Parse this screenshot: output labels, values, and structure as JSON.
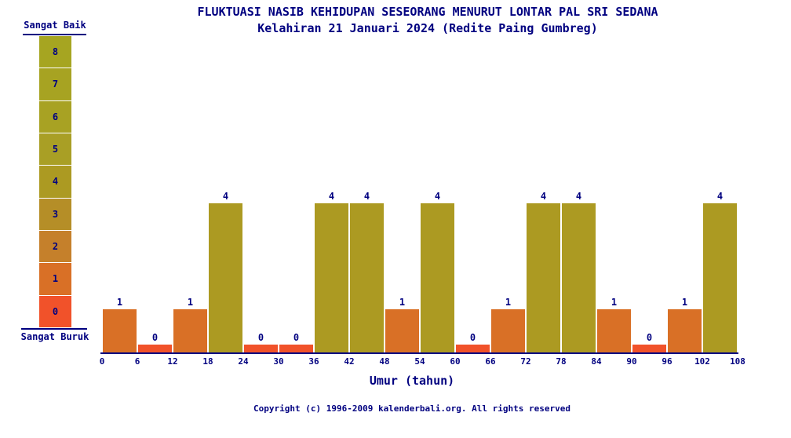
{
  "title": {
    "line1": "FLUKTUASI NASIB KEHIDUPAN SESEORANG MENURUT LONTAR PAL SRI SEDANA",
    "line2": "Kelahiran 21 Januari 2024 (Redite Paing Gumbreg)"
  },
  "legend": {
    "top_label": "Sangat Baik",
    "bottom_label": "Sangat Buruk",
    "scale": [
      {
        "value": 8,
        "color": "#a6a521"
      },
      {
        "value": 7,
        "color": "#a7a322"
      },
      {
        "value": 6,
        "color": "#a8a223"
      },
      {
        "value": 5,
        "color": "#a99f25"
      },
      {
        "value": 4,
        "color": "#ac9a22"
      },
      {
        "value": 3,
        "color": "#b58e27"
      },
      {
        "value": 2,
        "color": "#c5802b"
      },
      {
        "value": 1,
        "color": "#d97026"
      },
      {
        "value": 0,
        "color": "#f1522a"
      }
    ]
  },
  "chart_data": {
    "type": "bar",
    "title": "FLUKTUASI NASIB KEHIDUPAN SESEORANG MENURUT LONTAR PAL SRI SEDANA",
    "subtitle": "Kelahiran 21 Januari 2024 (Redite Paing Gumbreg)",
    "xlabel": "Umur (tahun)",
    "ylabel": "",
    "x_ticks": [
      0,
      6,
      12,
      18,
      24,
      30,
      36,
      42,
      48,
      54,
      60,
      66,
      72,
      78,
      84,
      90,
      96,
      102,
      108
    ],
    "bin_width_years": 6,
    "categories": [
      "0-6",
      "6-12",
      "12-18",
      "18-24",
      "24-30",
      "30-36",
      "36-42",
      "42-48",
      "48-54",
      "54-60",
      "60-66",
      "66-72",
      "72-78",
      "78-84",
      "84-90",
      "90-96",
      "96-102",
      "102-108"
    ],
    "values": [
      1,
      0,
      1,
      4,
      0,
      0,
      4,
      4,
      1,
      4,
      0,
      1,
      4,
      4,
      1,
      0,
      1,
      4
    ],
    "ylim": [
      0,
      8
    ],
    "grid": false,
    "legend_position": "left",
    "bar_labels_shown": true,
    "color_rule": "bar color taken from legend.scale entry matching the bar value"
  },
  "footer": {
    "copyright": "Copyright (c) 1996-2009 kalenderbali.org. All rights reserved"
  },
  "colors": {
    "text": "#000080",
    "axis": "#000080",
    "background": "#ffffff"
  }
}
